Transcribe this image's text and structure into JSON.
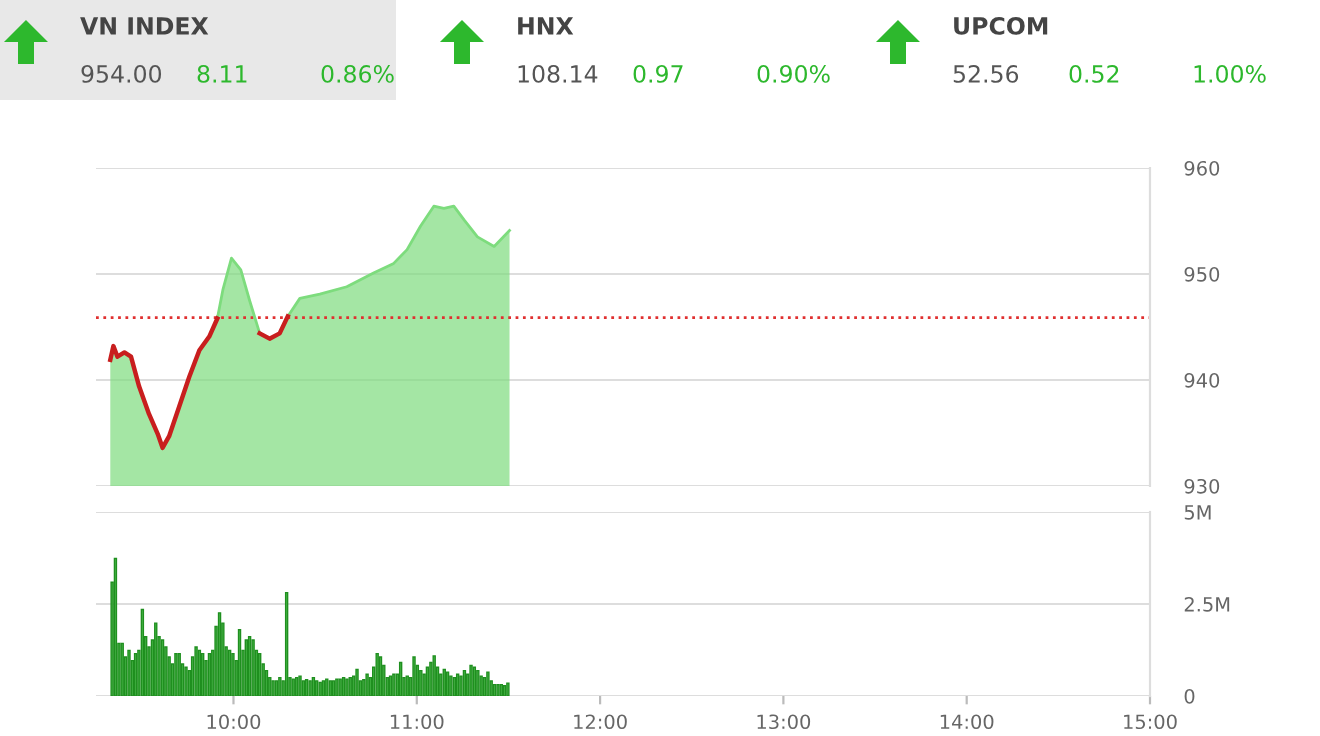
{
  "chart_data": [
    {
      "type": "other",
      "annotations": [
        "VN INDEX",
        "954.00",
        "8.11",
        "0.86%",
        "HNX",
        "108.14",
        "0.97",
        "0.90%",
        "UPCOM",
        "52.56",
        "0.52",
        "1.00%"
      ]
    },
    {
      "type": "area",
      "tick_labels": "y",
      "xlim": [
        9.25,
        15
      ],
      "ylim": [
        930,
        960
      ],
      "yticks": [
        930,
        940,
        950,
        960
      ],
      "grid": "y",
      "ref_lines": [
        {
          "axis": "y",
          "value": 945.89,
          "color": "#e03030",
          "line_style": "dotted"
        }
      ],
      "series": [
        {
          "type": "area",
          "color": "#7ddc7d",
          "x": [
            9.328,
            9.345,
            9.367,
            9.405,
            9.441,
            9.485,
            9.539,
            9.587,
            9.613,
            9.649,
            9.704,
            9.759,
            9.814,
            9.868,
            9.912,
            9.942,
            9.989,
            10.04,
            10.088,
            10.143,
            10.197,
            10.252,
            10.296,
            10.362,
            10.471,
            10.618,
            10.764,
            10.874,
            10.947,
            11.02,
            11.093,
            11.148,
            11.202,
            11.258,
            11.331,
            11.422,
            11.506
          ],
          "values": [
            941.9,
            943.2,
            942.2,
            942.6,
            942.2,
            939.4,
            936.8,
            934.9,
            933.6,
            934.7,
            937.5,
            940.3,
            942.8,
            944.1,
            945.8,
            948.5,
            951.5,
            950.4,
            947.5,
            944.4,
            943.9,
            944.4,
            946.0,
            947.7,
            948.1,
            948.8,
            950.1,
            951.0,
            952.3,
            954.5,
            956.4,
            956.2,
            956.4,
            955.1,
            953.5,
            952.6,
            954.1
          ]
        },
        {
          "type": "line",
          "color": "#c81e1e",
          "x": [
            9.328,
            9.345,
            9.367,
            9.405,
            9.441,
            9.485,
            9.539,
            9.587,
            9.613,
            9.649,
            9.704,
            9.759,
            9.814,
            9.868,
            9.912,
            10.0,
            10.143,
            10.197,
            10.252,
            10.296
          ],
          "values": [
            941.9,
            943.2,
            942.2,
            942.6,
            942.2,
            939.4,
            936.8,
            934.9,
            933.6,
            934.7,
            937.5,
            940.3,
            942.8,
            944.1,
            945.8,
            null,
            944.4,
            943.9,
            944.4,
            946.0
          ]
        }
      ]
    },
    {
      "type": "bar",
      "xlim": [
        9.25,
        15
      ],
      "ylim": [
        0,
        5
      ],
      "grid": "y",
      "xticks": [
        {
          "value": 10,
          "label": "10:00"
        },
        {
          "value": 11,
          "label": "11:00"
        },
        {
          "value": 12,
          "label": "12:00"
        },
        {
          "value": 13,
          "label": "13:00"
        },
        {
          "value": 14,
          "label": "14:00"
        },
        {
          "value": 15,
          "label": "15:00"
        }
      ],
      "yticks": [
        0,
        {
          "value": 2.5,
          "label": "2.5M"
        },
        {
          "value": 5,
          "label": "5M"
        }
      ],
      "series": [
        {
          "color": "#4cbb4c",
          "x": [
            9.338,
            9.356,
            9.375,
            9.393,
            9.411,
            9.43,
            9.448,
            9.466,
            9.484,
            9.503,
            9.521,
            9.539,
            9.558,
            9.576,
            9.594,
            9.613,
            9.631,
            9.649,
            9.667,
            9.686,
            9.704,
            9.722,
            9.741,
            9.759,
            9.777,
            9.796,
            9.814,
            9.832,
            9.85,
            9.869,
            9.887,
            9.905,
            9.924,
            9.942,
            9.96,
            9.979,
            9.997,
            10.015,
            10.033,
            10.052,
            10.07,
            10.088,
            10.107,
            10.125,
            10.143,
            10.162,
            10.18,
            10.198,
            10.216,
            10.235,
            10.253,
            10.271,
            10.29,
            10.308,
            10.326,
            10.345,
            10.363,
            10.381,
            10.399,
            10.418,
            10.436,
            10.454,
            10.473,
            10.491,
            10.509,
            10.528,
            10.546,
            10.564,
            10.582,
            10.601,
            10.619,
            10.637,
            10.656,
            10.674,
            10.692,
            10.711,
            10.729,
            10.747,
            10.765,
            10.784,
            10.802,
            10.82,
            10.839,
            10.857,
            10.875,
            10.894,
            10.912,
            10.93,
            10.948,
            10.967,
            10.985,
            11.003,
            11.022,
            11.04,
            11.058,
            11.077,
            11.095,
            11.113,
            11.131,
            11.15,
            11.168,
            11.186,
            11.205,
            11.223,
            11.241,
            11.26,
            11.278,
            11.296,
            11.314,
            11.333,
            11.351,
            11.369,
            11.388,
            11.406,
            11.424,
            11.443,
            11.461,
            11.479,
            11.497
          ],
          "values": [
            3.09,
            3.74,
            1.43,
            1.43,
            1.06,
            1.24,
            0.96,
            1.15,
            1.24,
            2.35,
            1.61,
            1.33,
            1.52,
            1.98,
            1.61,
            1.52,
            1.33,
            1.06,
            0.87,
            1.15,
            1.15,
            0.87,
            0.78,
            0.69,
            1.06,
            1.33,
            1.24,
            1.15,
            0.96,
            1.15,
            1.24,
            1.89,
            2.26,
            1.98,
            1.33,
            1.24,
            1.15,
            0.96,
            1.8,
            1.24,
            1.52,
            1.61,
            1.52,
            1.24,
            1.15,
            0.87,
            0.69,
            0.5,
            0.41,
            0.41,
            0.5,
            0.41,
            2.81,
            0.5,
            0.46,
            0.5,
            0.54,
            0.41,
            0.44,
            0.41,
            0.5,
            0.41,
            0.37,
            0.41,
            0.46,
            0.41,
            0.41,
            0.46,
            0.46,
            0.5,
            0.46,
            0.5,
            0.54,
            0.72,
            0.41,
            0.44,
            0.59,
            0.5,
            0.78,
            1.15,
            1.06,
            0.83,
            0.5,
            0.54,
            0.59,
            0.59,
            0.91,
            0.5,
            0.54,
            0.5,
            1.06,
            0.83,
            0.69,
            0.59,
            0.78,
            0.91,
            1.09,
            0.78,
            0.59,
            0.72,
            0.65,
            0.54,
            0.5,
            0.59,
            0.54,
            0.69,
            0.59,
            0.83,
            0.78,
            0.69,
            0.54,
            0.5,
            0.65,
            0.41,
            0.31,
            0.31,
            0.31,
            0.28,
            0.35
          ]
        }
      ]
    }
  ]
}
